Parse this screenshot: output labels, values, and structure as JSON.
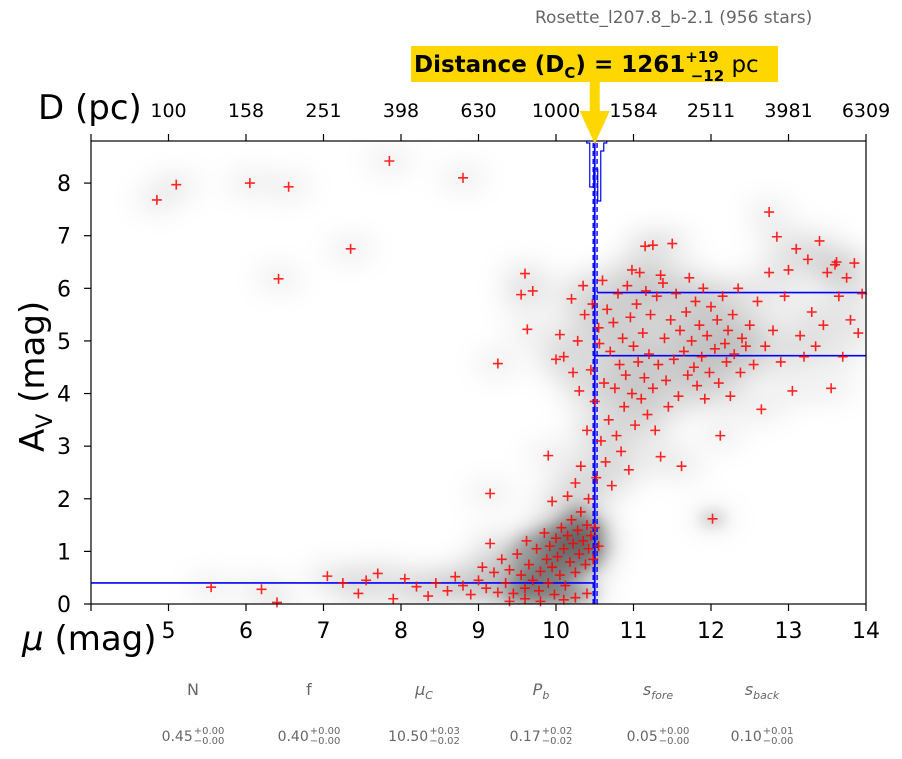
{
  "figure": {
    "title": "Rosette_l207.8_b-2.1 (956 stars)"
  },
  "chart_data": {
    "type": "scatter",
    "title": "Rosette_l207.8_b-2.1 (956 stars)",
    "xlabel": "μ (mag)",
    "ylabel": "A_V (mag)",
    "top_xlabel": "D (pc)",
    "xlim": [
      4.0,
      14.0
    ],
    "ylim": [
      0.0,
      8.8
    ],
    "xticks": [
      5,
      6,
      7,
      8,
      9,
      10,
      11,
      12,
      13,
      14
    ],
    "yticks": [
      0,
      1,
      2,
      3,
      4,
      5,
      6,
      7,
      8
    ],
    "top_ticks": [
      {
        "mu": 5.0,
        "label": "100"
      },
      {
        "mu": 6.0,
        "label": "158"
      },
      {
        "mu": 7.0,
        "label": "251"
      },
      {
        "mu": 8.0,
        "label": "398"
      },
      {
        "mu": 9.0,
        "label": "630"
      },
      {
        "mu": 10.0,
        "label": "1000"
      },
      {
        "mu": 11.0,
        "label": "1584"
      },
      {
        "mu": 12.0,
        "label": "2511"
      },
      {
        "mu": 13.0,
        "label": "3981"
      },
      {
        "mu": 14.0,
        "label": "6309"
      }
    ],
    "annotation": {
      "prefix": "Distance (D",
      "sub": "C",
      "mid": ") = 1261",
      "sup": "+19",
      "low": "−12",
      "unit": " pc",
      "background": "#FFD700"
    },
    "model": {
      "mu_c": 10.5,
      "mu_c_low": 10.48,
      "mu_c_high": 10.53,
      "av_fore": 0.4,
      "av_back": 4.72,
      "av_back_upper": 5.92,
      "line_color": "#0000FF"
    },
    "series": [
      {
        "marker": "+",
        "color": "#FF0000",
        "points": [
          [
            4.85,
            7.68
          ],
          [
            5.1,
            7.97
          ],
          [
            6.05,
            8.0
          ],
          [
            6.55,
            7.93
          ],
          [
            7.85,
            8.42
          ],
          [
            8.8,
            8.1
          ],
          [
            7.35,
            6.75
          ],
          [
            6.42,
            6.18
          ],
          [
            5.55,
            0.32
          ],
          [
            6.2,
            0.28
          ],
          [
            6.4,
            0.03
          ],
          [
            7.05,
            0.53
          ],
          [
            7.25,
            0.4
          ],
          [
            7.45,
            0.2
          ],
          [
            7.55,
            0.45
          ],
          [
            7.7,
            0.58
          ],
          [
            7.9,
            0.1
          ],
          [
            8.05,
            0.48
          ],
          [
            8.2,
            0.33
          ],
          [
            8.35,
            0.15
          ],
          [
            8.45,
            0.4
          ],
          [
            8.6,
            0.25
          ],
          [
            8.7,
            0.52
          ],
          [
            8.8,
            0.35
          ],
          [
            8.9,
            0.18
          ],
          [
            9.0,
            0.45
          ],
          [
            9.05,
            0.7
          ],
          [
            9.1,
            0.3
          ],
          [
            9.15,
            1.15
          ],
          [
            9.2,
            0.6
          ],
          [
            9.25,
            0.22
          ],
          [
            9.3,
            0.85
          ],
          [
            9.35,
            0.4
          ],
          [
            9.4,
            0.65
          ],
          [
            9.45,
            0.2
          ],
          [
            9.5,
            0.95
          ],
          [
            9.55,
            0.55
          ],
          [
            9.6,
            0.3
          ],
          [
            9.62,
            1.2
          ],
          [
            9.65,
            0.75
          ],
          [
            9.7,
            0.45
          ],
          [
            9.75,
            1.05
          ],
          [
            9.78,
            0.25
          ],
          [
            9.8,
            0.62
          ],
          [
            9.85,
            1.35
          ],
          [
            9.88,
            0.85
          ],
          [
            9.9,
            0.4
          ],
          [
            9.92,
            1.1
          ],
          [
            9.95,
            0.7
          ],
          [
            9.98,
            0.18
          ],
          [
            10.0,
            1.25
          ],
          [
            10.02,
            0.9
          ],
          [
            10.05,
            0.55
          ],
          [
            10.07,
            1.45
          ],
          [
            10.1,
            1.05
          ],
          [
            10.12,
            0.35
          ],
          [
            10.15,
            1.3
          ],
          [
            10.18,
            0.8
          ],
          [
            10.2,
            1.6
          ],
          [
            10.22,
            1.15
          ],
          [
            10.25,
            0.6
          ],
          [
            10.28,
            1.4
          ],
          [
            10.3,
            0.95
          ],
          [
            10.32,
            1.75
          ],
          [
            10.35,
            1.2
          ],
          [
            10.38,
            0.75
          ],
          [
            10.4,
            1.5
          ],
          [
            10.42,
            1.05
          ],
          [
            10.45,
            1.3
          ],
          [
            10.48,
            0.85
          ],
          [
            10.5,
            1.45
          ],
          [
            10.55,
            1.1
          ],
          [
            9.8,
            0.05
          ],
          [
            10.1,
            0.08
          ],
          [
            10.25,
            0.12
          ],
          [
            10.4,
            0.2
          ],
          [
            9.6,
            0.1
          ],
          [
            9.4,
            0.05
          ],
          [
            9.15,
            2.1
          ],
          [
            9.25,
            4.57
          ],
          [
            9.55,
            5.88
          ],
          [
            9.6,
            6.28
          ],
          [
            9.63,
            5.22
          ],
          [
            9.7,
            5.95
          ],
          [
            9.9,
            2.82
          ],
          [
            9.95,
            1.95
          ],
          [
            10.0,
            4.65
          ],
          [
            10.05,
            5.12
          ],
          [
            10.1,
            4.7
          ],
          [
            10.15,
            2.05
          ],
          [
            10.2,
            5.8
          ],
          [
            10.22,
            4.4
          ],
          [
            10.25,
            2.3
          ],
          [
            10.28,
            5.0
          ],
          [
            10.3,
            4.05
          ],
          [
            10.32,
            2.62
          ],
          [
            10.35,
            6.05
          ],
          [
            10.37,
            5.5
          ],
          [
            10.4,
            3.3
          ],
          [
            10.42,
            2.0
          ],
          [
            10.45,
            4.45
          ],
          [
            10.47,
            5.7
          ],
          [
            10.5,
            3.85
          ],
          [
            10.52,
            2.4
          ],
          [
            10.55,
            5.25
          ],
          [
            10.56,
            4.95
          ],
          [
            10.58,
            3.1
          ],
          [
            10.6,
            6.15
          ],
          [
            10.62,
            4.2
          ],
          [
            10.64,
            2.7
          ],
          [
            10.66,
            5.6
          ],
          [
            10.68,
            3.5
          ],
          [
            10.7,
            4.8
          ],
          [
            10.72,
            2.25
          ],
          [
            10.74,
            5.35
          ],
          [
            10.76,
            4.1
          ],
          [
            10.78,
            3.2
          ],
          [
            10.8,
            5.9
          ],
          [
            10.82,
            4.55
          ],
          [
            10.84,
            2.9
          ],
          [
            10.86,
            5.05
          ],
          [
            10.88,
            3.75
          ],
          [
            10.9,
            4.35
          ],
          [
            10.92,
            6.05
          ],
          [
            10.94,
            2.55
          ],
          [
            10.96,
            5.45
          ],
          [
            10.98,
            4.0
          ],
          [
            11.0,
            4.9
          ],
          [
            11.02,
            3.4
          ],
          [
            11.04,
            5.7
          ],
          [
            11.06,
            4.6
          ],
          [
            11.08,
            6.3
          ],
          [
            11.1,
            3.9
          ],
          [
            11.12,
            5.15
          ],
          [
            11.14,
            4.3
          ],
          [
            11.16,
            5.95
          ],
          [
            11.18,
            3.6
          ],
          [
            11.2,
            4.75
          ],
          [
            11.22,
            5.5
          ],
          [
            11.25,
            4.1
          ],
          [
            11.28,
            3.3
          ],
          [
            11.3,
            5.85
          ],
          [
            11.32,
            4.55
          ],
          [
            11.35,
            2.8
          ],
          [
            11.38,
            6.1
          ],
          [
            11.4,
            5.05
          ],
          [
            11.42,
            4.25
          ],
          [
            11.45,
            3.75
          ],
          [
            11.48,
            5.4
          ],
          [
            11.5,
            6.85
          ],
          [
            11.52,
            4.65
          ],
          [
            11.55,
            5.9
          ],
          [
            11.58,
            3.95
          ],
          [
            11.6,
            5.2
          ],
          [
            11.62,
            2.62
          ],
          [
            11.65,
            4.8
          ],
          [
            11.68,
            5.55
          ],
          [
            11.7,
            4.35
          ],
          [
            11.72,
            6.2
          ],
          [
            11.75,
            5.0
          ],
          [
            11.78,
            4.5
          ],
          [
            11.8,
            5.75
          ],
          [
            11.82,
            4.15
          ],
          [
            11.85,
            5.3
          ],
          [
            11.88,
            4.7
          ],
          [
            11.9,
            6.0
          ],
          [
            11.92,
            3.9
          ],
          [
            11.95,
            5.1
          ],
          [
            11.98,
            4.4
          ],
          [
            12.0,
            5.65
          ],
          [
            12.02,
            1.62
          ],
          [
            12.05,
            4.85
          ],
          [
            12.08,
            5.4
          ],
          [
            12.1,
            4.2
          ],
          [
            12.12,
            3.2
          ],
          [
            12.15,
            5.85
          ],
          [
            12.18,
            4.95
          ],
          [
            12.2,
            4.6
          ],
          [
            12.22,
            5.2
          ],
          [
            12.25,
            3.95
          ],
          [
            12.28,
            5.5
          ],
          [
            12.3,
            4.75
          ],
          [
            12.35,
            6.0
          ],
          [
            12.38,
            4.4
          ],
          [
            12.4,
            5.05
          ],
          [
            12.45,
            4.9
          ],
          [
            12.5,
            5.3
          ],
          [
            12.55,
            4.55
          ],
          [
            12.6,
            5.75
          ],
          [
            12.65,
            3.7
          ],
          [
            12.7,
            4.9
          ],
          [
            12.75,
            7.45
          ],
          [
            12.8,
            5.2
          ],
          [
            12.85,
            6.98
          ],
          [
            12.9,
            4.6
          ],
          [
            12.95,
            5.85
          ],
          [
            13.0,
            6.35
          ],
          [
            13.05,
            4.05
          ],
          [
            13.1,
            6.75
          ],
          [
            13.15,
            5.1
          ],
          [
            13.2,
            4.7
          ],
          [
            13.25,
            6.55
          ],
          [
            13.3,
            5.55
          ],
          [
            13.35,
            4.9
          ],
          [
            13.4,
            6.9
          ],
          [
            13.45,
            5.3
          ],
          [
            13.5,
            6.3
          ],
          [
            13.55,
            4.1
          ],
          [
            13.6,
            6.45
          ],
          [
            13.65,
            5.85
          ],
          [
            13.7,
            4.7
          ],
          [
            13.75,
            6.2
          ],
          [
            13.8,
            5.4
          ],
          [
            13.85,
            6.48
          ],
          [
            13.9,
            5.15
          ],
          [
            13.95,
            5.9
          ],
          [
            11.15,
            6.8
          ],
          [
            11.25,
            6.82
          ],
          [
            10.98,
            6.35
          ],
          [
            11.35,
            6.25
          ],
          [
            13.62,
            6.5
          ],
          [
            12.75,
            6.3
          ]
        ]
      }
    ]
  },
  "params": [
    {
      "name": "N",
      "value": "0.45",
      "sup": "+0.00",
      "sub": "−0.00"
    },
    {
      "name": "f",
      "value": "0.40",
      "sup": "+0.00",
      "sub": "−0.00"
    },
    {
      "name": "μ",
      "name_sub": "C",
      "value": "10.50",
      "sup": "+0.03",
      "sub": "−0.02"
    },
    {
      "name": "P",
      "name_sub": "b",
      "value": "0.17",
      "sup": "+0.02",
      "sub": "−0.02"
    },
    {
      "name": "s",
      "name_sub": "fore",
      "value": "0.05",
      "sup": "+0.00",
      "sub": "−0.00"
    },
    {
      "name": "s",
      "name_sub": "back",
      "value": "0.10",
      "sup": "+0.01",
      "sub": "−0.00"
    }
  ]
}
